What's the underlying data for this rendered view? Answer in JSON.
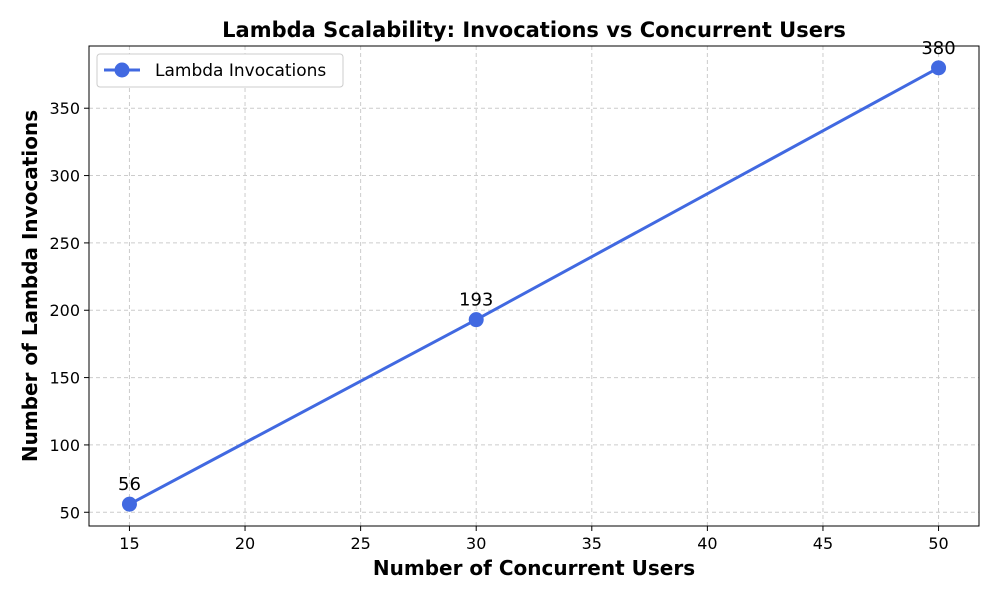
{
  "chart_data": {
    "type": "line",
    "title": "Lambda Scalability: Invocations vs Concurrent Users",
    "xlabel": "Number of Concurrent Users",
    "ylabel": "Number of Lambda Invocations",
    "xlim": [
      13.25,
      51.75
    ],
    "ylim": [
      39.8,
      396.2
    ],
    "xticks": [
      15,
      20,
      25,
      30,
      35,
      40,
      45,
      50
    ],
    "yticks": [
      50,
      100,
      150,
      200,
      250,
      300,
      350
    ],
    "grid": true,
    "legend_position": "top-left",
    "series": [
      {
        "name": "Lambda Invocations",
        "color": "#4169e1",
        "marker": "circle",
        "x": [
          15,
          30,
          50
        ],
        "y": [
          56,
          193,
          380
        ],
        "data_labels": [
          "56",
          "193",
          "380"
        ]
      }
    ]
  }
}
